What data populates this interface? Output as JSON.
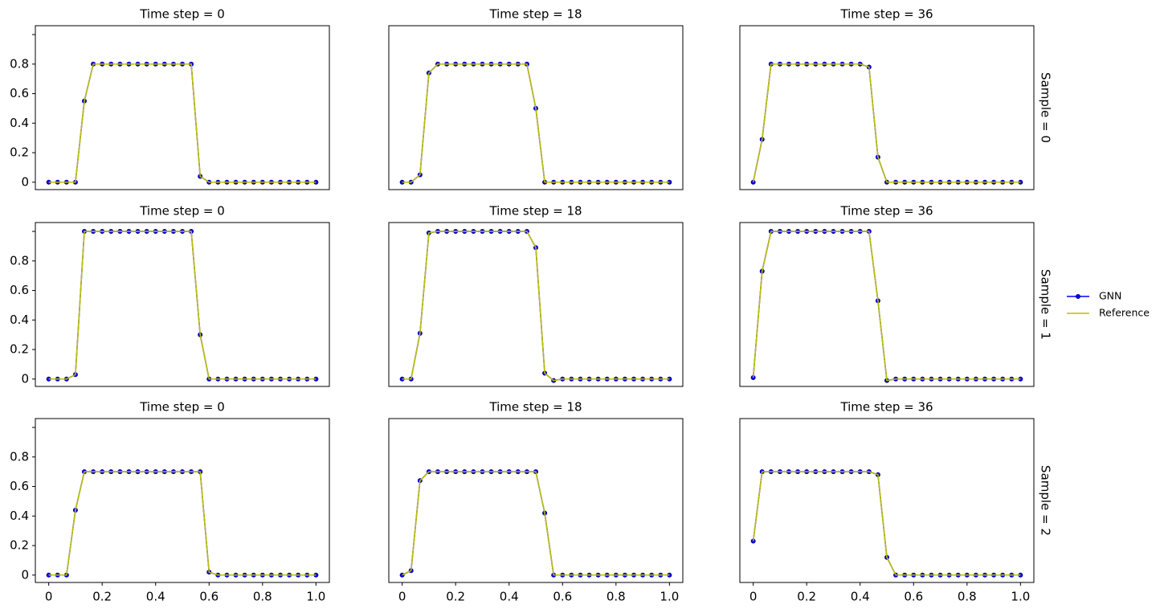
{
  "chart_data": [
    {
      "type": "line",
      "title": "Time step = 0",
      "x": [
        0,
        0.0333,
        0.0667,
        0.1,
        0.1333,
        0.1667,
        0.2,
        0.2333,
        0.2667,
        0.3,
        0.3333,
        0.3667,
        0.4,
        0.4333,
        0.4667,
        0.5,
        0.5333,
        0.5667,
        0.6,
        0.6333,
        0.6667,
        0.7,
        0.7333,
        0.7667,
        0.8,
        0.8333,
        0.8667,
        0.9,
        0.9333,
        0.9667,
        1
      ],
      "xlim": [
        -0.05,
        1.05
      ],
      "ylim": [
        -0.05,
        1.06
      ],
      "yticks": [
        0,
        0.2,
        0.4,
        0.6,
        0.8,
        {
          "value": 1,
          "label": null
        }
      ],
      "series": [
        {
          "color": "#0000ff",
          "marker": true,
          "values": [
            0,
            0,
            0,
            0,
            0.55,
            0.8,
            0.8,
            0.8,
            0.8,
            0.8,
            0.8,
            0.8,
            0.8,
            0.8,
            0.8,
            0.8,
            0.8,
            0.04,
            0,
            0,
            0,
            0,
            0,
            0,
            0,
            0,
            0,
            0,
            0,
            0,
            0
          ]
        },
        {
          "color": "#bfbf00",
          "marker": false,
          "values": [
            0,
            0,
            0,
            0,
            0.55,
            0.8,
            0.8,
            0.8,
            0.8,
            0.8,
            0.8,
            0.8,
            0.8,
            0.8,
            0.8,
            0.8,
            0.8,
            0.04,
            0,
            0,
            0,
            0,
            0,
            0,
            0,
            0,
            0,
            0,
            0,
            0,
            0
          ]
        }
      ]
    },
    {
      "type": "line",
      "title": "Time step = 18",
      "x": [
        0,
        0.0333,
        0.0667,
        0.1,
        0.1333,
        0.1667,
        0.2,
        0.2333,
        0.2667,
        0.3,
        0.3333,
        0.3667,
        0.4,
        0.4333,
        0.4667,
        0.5,
        0.5333,
        0.5667,
        0.6,
        0.6333,
        0.6667,
        0.7,
        0.7333,
        0.7667,
        0.8,
        0.8333,
        0.8667,
        0.9,
        0.9333,
        0.9667,
        1
      ],
      "xlim": [
        -0.05,
        1.05
      ],
      "ylim": [
        -0.05,
        1.06
      ],
      "series": [
        {
          "color": "#0000ff",
          "marker": true,
          "values": [
            0,
            0,
            0.05,
            0.74,
            0.8,
            0.8,
            0.8,
            0.8,
            0.8,
            0.8,
            0.8,
            0.8,
            0.8,
            0.8,
            0.8,
            0.5,
            0,
            0,
            0,
            0,
            0,
            0,
            0,
            0,
            0,
            0,
            0,
            0,
            0,
            0,
            0
          ]
        },
        {
          "color": "#bfbf00",
          "marker": false,
          "values": [
            0,
            0,
            0.05,
            0.74,
            0.8,
            0.8,
            0.8,
            0.8,
            0.8,
            0.8,
            0.8,
            0.8,
            0.8,
            0.8,
            0.8,
            0.5,
            0,
            0,
            0,
            0,
            0,
            0,
            0,
            0,
            0,
            0,
            0,
            0,
            0,
            0,
            0
          ]
        }
      ]
    },
    {
      "type": "line",
      "title": "Time step = 36",
      "row_label": "Sample = 0",
      "x": [
        0,
        0.0333,
        0.0667,
        0.1,
        0.1333,
        0.1667,
        0.2,
        0.2333,
        0.2667,
        0.3,
        0.3333,
        0.3667,
        0.4,
        0.4333,
        0.4667,
        0.5,
        0.5333,
        0.5667,
        0.6,
        0.6333,
        0.6667,
        0.7,
        0.7333,
        0.7667,
        0.8,
        0.8333,
        0.8667,
        0.9,
        0.9333,
        0.9667,
        1
      ],
      "xlim": [
        -0.05,
        1.05
      ],
      "ylim": [
        -0.05,
        1.06
      ],
      "series": [
        {
          "color": "#0000ff",
          "marker": true,
          "values": [
            0,
            0.29,
            0.8,
            0.8,
            0.8,
            0.8,
            0.8,
            0.8,
            0.8,
            0.8,
            0.8,
            0.8,
            0.8,
            0.78,
            0.17,
            0,
            0,
            0,
            0,
            0,
            0,
            0,
            0,
            0,
            0,
            0,
            0,
            0,
            0,
            0,
            0
          ]
        },
        {
          "color": "#bfbf00",
          "marker": false,
          "values": [
            0,
            0.29,
            0.8,
            0.8,
            0.8,
            0.8,
            0.8,
            0.8,
            0.8,
            0.8,
            0.8,
            0.8,
            0.8,
            0.78,
            0.17,
            0,
            0,
            0,
            0,
            0,
            0,
            0,
            0,
            0,
            0,
            0,
            0,
            0,
            0,
            0,
            0
          ]
        }
      ]
    },
    {
      "type": "line",
      "title": "Time step = 0",
      "x": [
        0,
        0.0333,
        0.0667,
        0.1,
        0.1333,
        0.1667,
        0.2,
        0.2333,
        0.2667,
        0.3,
        0.3333,
        0.3667,
        0.4,
        0.4333,
        0.4667,
        0.5,
        0.5333,
        0.5667,
        0.6,
        0.6333,
        0.6667,
        0.7,
        0.7333,
        0.7667,
        0.8,
        0.8333,
        0.8667,
        0.9,
        0.9333,
        0.9667,
        1
      ],
      "xlim": [
        -0.05,
        1.05
      ],
      "ylim": [
        -0.05,
        1.06
      ],
      "yticks": [
        0,
        0.2,
        0.4,
        0.6,
        0.8,
        {
          "value": 1,
          "label": null
        }
      ],
      "series": [
        {
          "color": "#0000ff",
          "marker": true,
          "values": [
            0,
            0,
            0,
            0.03,
            1,
            1,
            1,
            1,
            1,
            1,
            1,
            1,
            1,
            1,
            1,
            1,
            1,
            0.3,
            0,
            0,
            0,
            0,
            0,
            0,
            0,
            0,
            0,
            0,
            0,
            0,
            0
          ]
        },
        {
          "color": "#bfbf00",
          "marker": false,
          "values": [
            0,
            0,
            0,
            0.03,
            1,
            1,
            1,
            1,
            1,
            1,
            1,
            1,
            1,
            1,
            1,
            1,
            1,
            0.3,
            0,
            0,
            0,
            0,
            0,
            0,
            0,
            0,
            0,
            0,
            0,
            0,
            0
          ]
        }
      ]
    },
    {
      "type": "line",
      "title": "Time step = 18",
      "x": [
        0,
        0.0333,
        0.0667,
        0.1,
        0.1333,
        0.1667,
        0.2,
        0.2333,
        0.2667,
        0.3,
        0.3333,
        0.3667,
        0.4,
        0.4333,
        0.4667,
        0.5,
        0.5333,
        0.5667,
        0.6,
        0.6333,
        0.6667,
        0.7,
        0.7333,
        0.7667,
        0.8,
        0.8333,
        0.8667,
        0.9,
        0.9333,
        0.9667,
        1
      ],
      "xlim": [
        -0.05,
        1.05
      ],
      "ylim": [
        -0.05,
        1.06
      ],
      "series": [
        {
          "color": "#0000ff",
          "marker": true,
          "values": [
            0,
            0,
            0.31,
            0.99,
            1,
            1,
            1,
            1,
            1,
            1,
            1,
            1,
            1,
            1,
            1,
            0.89,
            0.04,
            -0.01,
            0,
            0,
            0,
            0,
            0,
            0,
            0,
            0,
            0,
            0,
            0,
            0,
            0
          ]
        },
        {
          "color": "#bfbf00",
          "marker": false,
          "values": [
            0,
            0,
            0.31,
            0.99,
            1,
            1,
            1,
            1,
            1,
            1,
            1,
            1,
            1,
            1,
            1,
            0.89,
            0.04,
            -0.01,
            0,
            0,
            0,
            0,
            0,
            0,
            0,
            0,
            0,
            0,
            0,
            0,
            0
          ]
        }
      ]
    },
    {
      "type": "line",
      "title": "Time step = 36",
      "row_label": "Sample = 1",
      "legend": "right",
      "x": [
        0,
        0.0333,
        0.0667,
        0.1,
        0.1333,
        0.1667,
        0.2,
        0.2333,
        0.2667,
        0.3,
        0.3333,
        0.3667,
        0.4,
        0.4333,
        0.4667,
        0.5,
        0.5333,
        0.5667,
        0.6,
        0.6333,
        0.6667,
        0.7,
        0.7333,
        0.7667,
        0.8,
        0.8333,
        0.8667,
        0.9,
        0.9333,
        0.9667,
        1
      ],
      "xlim": [
        -0.05,
        1.05
      ],
      "ylim": [
        -0.05,
        1.06
      ],
      "series": [
        {
          "name": "GNN",
          "color": "#0000ff",
          "marker": true,
          "values": [
            0.01,
            0.73,
            1,
            1,
            1,
            1,
            1,
            1,
            1,
            1,
            1,
            1,
            1,
            1,
            0.53,
            -0.01,
            0,
            0,
            0,
            0,
            0,
            0,
            0,
            0,
            0,
            0,
            0,
            0,
            0,
            0,
            0
          ]
        },
        {
          "name": "Reference",
          "color": "#bfbf00",
          "marker": false,
          "values": [
            0.01,
            0.73,
            1,
            1,
            1,
            1,
            1,
            1,
            1,
            1,
            1,
            1,
            1,
            1,
            0.53,
            -0.01,
            0,
            0,
            0,
            0,
            0,
            0,
            0,
            0,
            0,
            0,
            0,
            0,
            0,
            0,
            0
          ]
        }
      ]
    },
    {
      "type": "line",
      "title": "Time step = 0",
      "x": [
        0,
        0.0333,
        0.0667,
        0.1,
        0.1333,
        0.1667,
        0.2,
        0.2333,
        0.2667,
        0.3,
        0.3333,
        0.3667,
        0.4,
        0.4333,
        0.4667,
        0.5,
        0.5333,
        0.5667,
        0.6,
        0.6333,
        0.6667,
        0.7,
        0.7333,
        0.7667,
        0.8,
        0.8333,
        0.8667,
        0.9,
        0.9333,
        0.9667,
        1
      ],
      "xlim": [
        -0.05,
        1.05
      ],
      "ylim": [
        -0.05,
        1.06
      ],
      "yticks": [
        0,
        0.2,
        0.4,
        0.6,
        0.8,
        {
          "value": 1,
          "label": null
        }
      ],
      "xticks": [
        0,
        0.2,
        0.4,
        0.6,
        0.8,
        {
          "value": 1,
          "label": "1.0"
        }
      ],
      "series": [
        {
          "color": "#0000ff",
          "marker": true,
          "values": [
            0,
            0,
            0,
            0.44,
            0.7,
            0.7,
            0.7,
            0.7,
            0.7,
            0.7,
            0.7,
            0.7,
            0.7,
            0.7,
            0.7,
            0.7,
            0.7,
            0.7,
            0.02,
            0,
            0,
            0,
            0,
            0,
            0,
            0,
            0,
            0,
            0,
            0,
            0
          ]
        },
        {
          "color": "#bfbf00",
          "marker": false,
          "values": [
            0,
            0,
            0,
            0.44,
            0.7,
            0.7,
            0.7,
            0.7,
            0.7,
            0.7,
            0.7,
            0.7,
            0.7,
            0.7,
            0.7,
            0.7,
            0.7,
            0.7,
            0.02,
            0,
            0,
            0,
            0,
            0,
            0,
            0,
            0,
            0,
            0,
            0,
            0
          ]
        }
      ]
    },
    {
      "type": "line",
      "title": "Time step = 18",
      "x": [
        0,
        0.0333,
        0.0667,
        0.1,
        0.1333,
        0.1667,
        0.2,
        0.2333,
        0.2667,
        0.3,
        0.3333,
        0.3667,
        0.4,
        0.4333,
        0.4667,
        0.5,
        0.5333,
        0.5667,
        0.6,
        0.6333,
        0.6667,
        0.7,
        0.7333,
        0.7667,
        0.8,
        0.8333,
        0.8667,
        0.9,
        0.9333,
        0.9667,
        1
      ],
      "xlim": [
        -0.05,
        1.05
      ],
      "ylim": [
        -0.05,
        1.06
      ],
      "xticks": [
        0,
        0.2,
        0.4,
        0.6,
        0.8,
        {
          "value": 1,
          "label": "1.0"
        }
      ],
      "series": [
        {
          "color": "#0000ff",
          "marker": true,
          "values": [
            0,
            0.03,
            0.64,
            0.7,
            0.7,
            0.7,
            0.7,
            0.7,
            0.7,
            0.7,
            0.7,
            0.7,
            0.7,
            0.7,
            0.7,
            0.7,
            0.42,
            0,
            0,
            0,
            0,
            0,
            0,
            0,
            0,
            0,
            0,
            0,
            0,
            0,
            0
          ]
        },
        {
          "color": "#bfbf00",
          "marker": false,
          "values": [
            0,
            0.03,
            0.64,
            0.7,
            0.7,
            0.7,
            0.7,
            0.7,
            0.7,
            0.7,
            0.7,
            0.7,
            0.7,
            0.7,
            0.7,
            0.7,
            0.42,
            0,
            0,
            0,
            0,
            0,
            0,
            0,
            0,
            0,
            0,
            0,
            0,
            0,
            0
          ]
        }
      ]
    },
    {
      "type": "line",
      "title": "Time step = 36",
      "row_label": "Sample = 2",
      "x": [
        0,
        0.0333,
        0.0667,
        0.1,
        0.1333,
        0.1667,
        0.2,
        0.2333,
        0.2667,
        0.3,
        0.3333,
        0.3667,
        0.4,
        0.4333,
        0.4667,
        0.5,
        0.5333,
        0.5667,
        0.6,
        0.6333,
        0.6667,
        0.7,
        0.7333,
        0.7667,
        0.8,
        0.8333,
        0.8667,
        0.9,
        0.9333,
        0.9667,
        1
      ],
      "xlim": [
        -0.05,
        1.05
      ],
      "ylim": [
        -0.05,
        1.06
      ],
      "xticks": [
        0,
        0.2,
        0.4,
        0.6,
        0.8,
        {
          "value": 1,
          "label": "1.0"
        }
      ],
      "series": [
        {
          "color": "#0000ff",
          "marker": true,
          "values": [
            0.23,
            0.7,
            0.7,
            0.7,
            0.7,
            0.7,
            0.7,
            0.7,
            0.7,
            0.7,
            0.7,
            0.7,
            0.7,
            0.7,
            0.68,
            0.12,
            0,
            0,
            0,
            0,
            0,
            0,
            0,
            0,
            0,
            0,
            0,
            0,
            0,
            0,
            0
          ]
        },
        {
          "color": "#bfbf00",
          "marker": false,
          "values": [
            0.23,
            0.7,
            0.7,
            0.7,
            0.7,
            0.7,
            0.7,
            0.7,
            0.7,
            0.7,
            0.7,
            0.7,
            0.7,
            0.7,
            0.68,
            0.12,
            0,
            0,
            0,
            0,
            0,
            0,
            0,
            0,
            0,
            0,
            0,
            0,
            0,
            0,
            0
          ]
        }
      ]
    }
  ]
}
